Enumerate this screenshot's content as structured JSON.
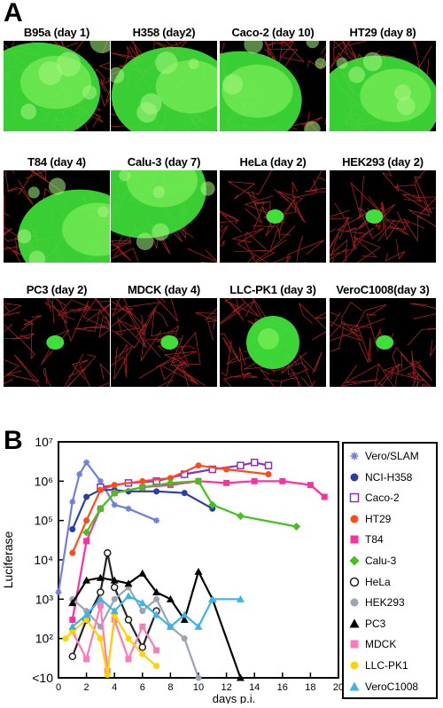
{
  "panel_a": {
    "letter": "A",
    "cells": [
      {
        "title": "B95a (day 1)",
        "extent": "large"
      },
      {
        "title": "H358 (day2)",
        "extent": "large"
      },
      {
        "title": "Caco-2 (day 10)",
        "extent": "large"
      },
      {
        "title": "HT29 (day 8)",
        "extent": "large"
      },
      {
        "title": "T84 (day 4)",
        "extent": "large"
      },
      {
        "title": "Calu-3 (day 7)",
        "extent": "large"
      },
      {
        "title": "HeLa (day 2)",
        "extent": "small"
      },
      {
        "title": "HEK293 (day 2)",
        "extent": "small"
      },
      {
        "title": "PC3 (day 2)",
        "extent": "small"
      },
      {
        "title": "MDCK (day 4)",
        "extent": "small"
      },
      {
        "title": "LLC-PK1 (day 3)",
        "extent": "medium"
      },
      {
        "title": "VeroC1008(day 3)",
        "extent": "small"
      }
    ]
  },
  "panel_b": {
    "letter": "B"
  },
  "chart_data": {
    "type": "line",
    "xlabel": "days p.i.",
    "ylabel": "Luciferase",
    "x_ticks": [
      0,
      2,
      4,
      6,
      8,
      10,
      12,
      14,
      16,
      18,
      20
    ],
    "y_scale": "log",
    "ylim": [
      10,
      10000000
    ],
    "y_tick_labels": [
      "<10",
      "10²",
      "10³",
      "10⁴",
      "10⁵",
      "10⁶",
      "10⁷"
    ],
    "grid": false,
    "legend_position": "right",
    "series": [
      {
        "name": "Vero/SLAM",
        "color": "#6f7fe0",
        "marker": "star",
        "x": [
          0,
          1,
          1.5,
          2,
          3,
          4,
          5,
          7
        ],
        "y": [
          1500,
          300000,
          1500000,
          3000000,
          1000000,
          250000,
          200000,
          100000
        ]
      },
      {
        "name": "NCI-H358",
        "color": "#2a3ea8",
        "marker": "circle",
        "x": [
          1,
          2,
          3,
          4,
          5,
          7,
          9,
          11
        ],
        "y": [
          60000,
          400000,
          600000,
          600000,
          550000,
          550000,
          500000,
          200000
        ]
      },
      {
        "name": "Caco-2",
        "color": "#8a32c8",
        "marker": "square-open",
        "x": [
          3,
          5,
          7,
          9,
          11,
          13,
          14,
          15
        ],
        "y": [
          700000,
          900000,
          1000000,
          1500000,
          2000000,
          2500000,
          3000000,
          2500000
        ]
      },
      {
        "name": "HT29",
        "color": "#ff4b1a",
        "marker": "circle",
        "x": [
          1,
          2,
          3,
          4,
          6,
          8,
          10,
          12,
          15
        ],
        "y": [
          15000,
          100000,
          600000,
          800000,
          1000000,
          1200000,
          2500000,
          2000000,
          1500000
        ]
      },
      {
        "name": "T84",
        "color": "#ff2fa0",
        "marker": "square",
        "x": [
          1,
          2,
          3,
          4,
          6,
          8,
          10,
          12,
          14,
          16,
          18,
          19
        ],
        "y": [
          300,
          30000,
          200000,
          500000,
          700000,
          800000,
          1000000,
          900000,
          1000000,
          1000000,
          800000,
          400000
        ]
      },
      {
        "name": "Calu-3",
        "color": "#44c21c",
        "marker": "diamond",
        "x": [
          2,
          3,
          4,
          6,
          8,
          10,
          11,
          13,
          17
        ],
        "y": [
          50000,
          200000,
          500000,
          700000,
          900000,
          1000000,
          250000,
          130000,
          70000
        ]
      },
      {
        "name": "HeLa",
        "color": "#222222",
        "marker": "circle-open",
        "x": [
          1,
          2,
          3,
          3.5,
          4,
          5,
          6,
          7
        ],
        "y": [
          35,
          300,
          1500,
          15000,
          2000,
          300,
          60,
          500
        ]
      },
      {
        "name": "HEK293",
        "color": "#9aa4b2",
        "marker": "circle",
        "x": [
          1,
          2,
          3,
          4,
          5,
          6,
          7,
          8,
          9,
          10
        ],
        "y": [
          1000,
          500,
          200,
          1000,
          2000,
          500,
          1000,
          200,
          100,
          10
        ]
      },
      {
        "name": "PC3",
        "color": "#000000",
        "marker": "triangle",
        "x": [
          1,
          2,
          3,
          4,
          5,
          6,
          7,
          8,
          9,
          10,
          11,
          13
        ],
        "y": [
          800,
          3000,
          3500,
          3000,
          2500,
          4500,
          1500,
          1000,
          300,
          5000,
          1000,
          10
        ]
      },
      {
        "name": "MDCK",
        "color": "#ff7ab8",
        "marker": "square",
        "x": [
          1,
          2,
          3,
          3.5,
          4,
          5,
          6,
          7
        ],
        "y": [
          150,
          30,
          700,
          15,
          300,
          30,
          200,
          50
        ]
      },
      {
        "name": "LLC-PK1",
        "color": "#ffd400",
        "marker": "circle",
        "x": [
          0.5,
          1,
          2,
          3,
          3.5,
          4,
          5,
          6,
          7
        ],
        "y": [
          100,
          150,
          300,
          100,
          12,
          400,
          100,
          40,
          20
        ]
      },
      {
        "name": "VeroC1008",
        "color": "#3fb3e6",
        "marker": "triangle",
        "x": [
          1,
          2,
          3,
          4,
          5,
          6,
          7,
          8,
          9,
          10,
          11,
          13
        ],
        "y": [
          200,
          400,
          1000,
          500,
          1200,
          800,
          400,
          200,
          400,
          200,
          1000,
          1000
        ]
      }
    ]
  }
}
